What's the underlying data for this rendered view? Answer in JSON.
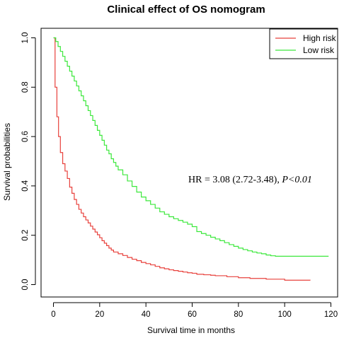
{
  "chart_data": {
    "type": "line",
    "title": "Clinical effect of OS nomogram",
    "xlabel": "Survival time in months",
    "ylabel": "Survival probabilities",
    "xlim": [
      0,
      120
    ],
    "ylim": [
      0,
      1
    ],
    "xticks": [
      "0",
      "20",
      "40",
      "60",
      "80",
      "100",
      "120"
    ],
    "yticks": [
      "0.0",
      "0.2",
      "0.4",
      "0.6",
      "0.8",
      "1.0"
    ],
    "grid": false,
    "legend_position": "top-right",
    "annotation": {
      "prefix": "HR = 3.08 (2.72-3.48), ",
      "pvalue": "P<0.01"
    },
    "series": [
      {
        "name": "High risk",
        "color": "#e8413c",
        "step": true,
        "x": [
          0,
          0.7,
          1.5,
          2.2,
          3,
          4,
          5,
          6,
          7,
          8,
          9,
          10,
          11,
          12,
          13,
          14,
          15,
          16,
          17,
          18,
          19,
          20,
          21,
          22,
          23,
          24,
          25,
          26,
          28,
          30,
          32,
          34,
          36,
          38,
          40,
          42,
          44,
          46,
          48,
          50,
          52,
          54,
          56,
          58,
          60,
          62,
          65,
          68,
          70,
          75,
          80,
          85,
          92,
          100,
          111
        ],
        "y": [
          1.0,
          0.8,
          0.68,
          0.6,
          0.535,
          0.49,
          0.46,
          0.43,
          0.395,
          0.37,
          0.345,
          0.325,
          0.305,
          0.29,
          0.275,
          0.262,
          0.25,
          0.237,
          0.225,
          0.213,
          0.202,
          0.19,
          0.178,
          0.168,
          0.158,
          0.148,
          0.14,
          0.132,
          0.125,
          0.118,
          0.11,
          0.103,
          0.097,
          0.09,
          0.085,
          0.08,
          0.074,
          0.068,
          0.064,
          0.06,
          0.057,
          0.054,
          0.051,
          0.048,
          0.046,
          0.042,
          0.04,
          0.038,
          0.036,
          0.032,
          0.028,
          0.025,
          0.022,
          0.018,
          0.017
        ]
      },
      {
        "name": "Low risk",
        "color": "#3ce83c",
        "step": true,
        "x": [
          0,
          1,
          2,
          3,
          4,
          5,
          6,
          7,
          8,
          9,
          10,
          11,
          12,
          13,
          14,
          15,
          16,
          17,
          18,
          19,
          20,
          21,
          22,
          23,
          24,
          25,
          26,
          27,
          28,
          30,
          32,
          34,
          36,
          38,
          40,
          42,
          44,
          46,
          48,
          50,
          52,
          54,
          56,
          58,
          60,
          62,
          64,
          66,
          68,
          70,
          72,
          74,
          76,
          78,
          80,
          82,
          84,
          86,
          88,
          90,
          92,
          94,
          96,
          100,
          110,
          119
        ],
        "y": [
          1.0,
          0.985,
          0.965,
          0.945,
          0.925,
          0.905,
          0.885,
          0.865,
          0.845,
          0.825,
          0.805,
          0.785,
          0.765,
          0.745,
          0.725,
          0.705,
          0.685,
          0.665,
          0.645,
          0.625,
          0.605,
          0.585,
          0.565,
          0.545,
          0.53,
          0.51,
          0.495,
          0.48,
          0.465,
          0.445,
          0.42,
          0.398,
          0.375,
          0.355,
          0.34,
          0.325,
          0.31,
          0.295,
          0.285,
          0.275,
          0.267,
          0.26,
          0.253,
          0.245,
          0.235,
          0.215,
          0.207,
          0.2,
          0.192,
          0.185,
          0.178,
          0.17,
          0.162,
          0.155,
          0.148,
          0.142,
          0.137,
          0.132,
          0.128,
          0.125,
          0.12,
          0.117,
          0.115,
          0.115,
          0.115,
          0.115
        ]
      }
    ]
  }
}
